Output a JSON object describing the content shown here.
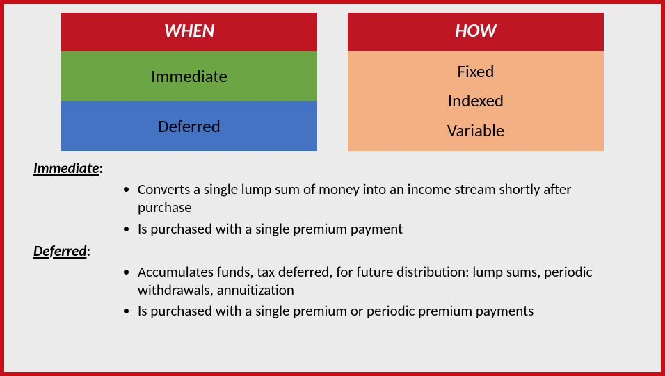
{
  "layout": {
    "outer_bg": "#c90e17",
    "frame_bg": "#ebebeb",
    "header_bg": "#be1622",
    "header_color": "#ffffff",
    "header_fontsize": 27,
    "body_fontsize": 25,
    "def_fontsize": 21,
    "when_rows": [
      {
        "bg": "#6ca644",
        "color": "#000000",
        "height": 72
      },
      {
        "bg": "#4473c4",
        "color": "#000000",
        "height": 72
      }
    ],
    "how_body_bg": "#f3b183",
    "how_body_color": "#000000"
  },
  "when": {
    "title": "WHEN",
    "items": [
      "Immediate",
      "Deferred"
    ]
  },
  "how": {
    "title": "HOW",
    "items": [
      "Fixed",
      "Indexed",
      "Variable"
    ]
  },
  "definitions": [
    {
      "term": "Immediate",
      "bullets": [
        "Converts a single lump sum of money into an income stream shortly after purchase",
        "Is purchased with a single premium payment"
      ]
    },
    {
      "term": "Deferred",
      "bullets": [
        "Accumulates funds, tax deferred, for future distribution: lump sums, periodic withdrawals, annuitization",
        "Is purchased with a single premium or periodic premium payments"
      ]
    }
  ]
}
